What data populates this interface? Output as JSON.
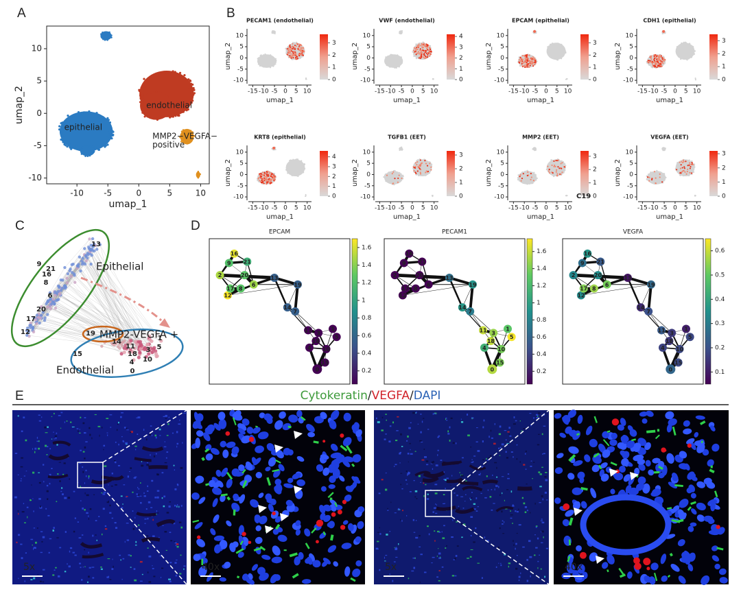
{
  "panel_a": {
    "label": "A",
    "x_label": "umap_1",
    "y_label": "umap_2",
    "xlim": [
      -14.9,
      11.4
    ],
    "ylim": [
      -10.9,
      13.5
    ],
    "xticks": [
      -10,
      -5,
      0,
      5,
      10
    ],
    "yticks": [
      -10,
      -5,
      0,
      5,
      10
    ],
    "cluster_labels": [
      "epithelial",
      "endothelial",
      "MMP2−VEGFA−",
      "positive"
    ]
  },
  "panel_b": {
    "label": "B",
    "x_label": "umap_1",
    "y_label": "umap_2",
    "xlim": [
      -17,
      12
    ],
    "ylim": [
      -11.5,
      13
    ],
    "xticks": [
      -15,
      -10,
      -5,
      0,
      5,
      10
    ],
    "yticks": [
      -10,
      -5,
      0,
      5,
      10
    ],
    "annotation": "C19",
    "plots": [
      {
        "title": "PECAM1 (endothelial)",
        "colorbar_lim": [
          0,
          3.7
        ],
        "colorbar_ticks": [
          0,
          1,
          2,
          3
        ]
      },
      {
        "title": "VWF (endothelial)",
        "colorbar_lim": [
          0,
          4.2
        ],
        "colorbar_ticks": [
          0,
          1,
          2,
          3,
          4
        ]
      },
      {
        "title": "EPCAM (epithelial)",
        "colorbar_lim": [
          0,
          3.7
        ],
        "colorbar_ticks": [
          0,
          1,
          2,
          3
        ]
      },
      {
        "title": "CDH1 (epithelial)",
        "colorbar_lim": [
          0,
          3.5
        ],
        "colorbar_ticks": [
          0,
          1,
          2,
          3
        ]
      },
      {
        "title": "KRT8 (epithelial)",
        "colorbar_lim": [
          0,
          4.6
        ],
        "colorbar_ticks": [
          0,
          1,
          2,
          3,
          4
        ]
      },
      {
        "title": "TGFB1 (EET)",
        "colorbar_lim": [
          0,
          3.3
        ],
        "colorbar_ticks": [
          0,
          1,
          2,
          3
        ]
      },
      {
        "title": "MMP2 (EET)",
        "colorbar_lim": [
          0,
          3.4
        ],
        "colorbar_ticks": [
          0,
          1,
          2,
          3
        ]
      },
      {
        "title": "VEGFA (EET)",
        "colorbar_lim": [
          0,
          3.2
        ],
        "colorbar_ticks": [
          0,
          1,
          2,
          3
        ]
      }
    ]
  },
  "panel_c": {
    "label": "C",
    "group_labels": [
      "Epithelial",
      "MMP2-VEGFA +",
      "Endothelial"
    ],
    "node_labels": [
      13,
      9,
      21,
      16,
      8,
      6,
      20,
      17,
      12,
      19,
      14,
      15,
      11,
      18,
      4,
      0,
      3,
      10,
      5,
      1
    ]
  },
  "panel_d": {
    "label": "D",
    "nodes": [
      0,
      1,
      2,
      3,
      4,
      5,
      6,
      7,
      8,
      9,
      10,
      11,
      12,
      13,
      14,
      15,
      16,
      17,
      18,
      19,
      20,
      21
    ],
    "plots": [
      {
        "title": "EPCAM",
        "colorbar_lim": [
          0.05,
          1.7
        ],
        "colorbar_ticks": [
          0.2,
          0.4,
          0.6,
          0.8,
          1,
          1.2,
          1.4,
          1.6
        ]
      },
      {
        "title": "PECAM1",
        "colorbar_lim": [
          0.05,
          1.75
        ],
        "colorbar_ticks": [
          0.2,
          0.4,
          0.6,
          0.8,
          1,
          1.2,
          1.4,
          1.6
        ]
      },
      {
        "title": "VEGFA",
        "colorbar_lim": [
          0.05,
          0.65
        ],
        "colorbar_ticks": [
          0.1,
          0.2,
          0.3,
          0.4,
          0.5,
          0.6
        ]
      }
    ]
  },
  "panel_e": {
    "label": "E",
    "title_parts": [
      "Cytokeratin",
      "/",
      "VEGFA",
      "/",
      "DAPI"
    ],
    "scale_labels": [
      "5x",
      "40x",
      "5x",
      "40x"
    ]
  }
}
